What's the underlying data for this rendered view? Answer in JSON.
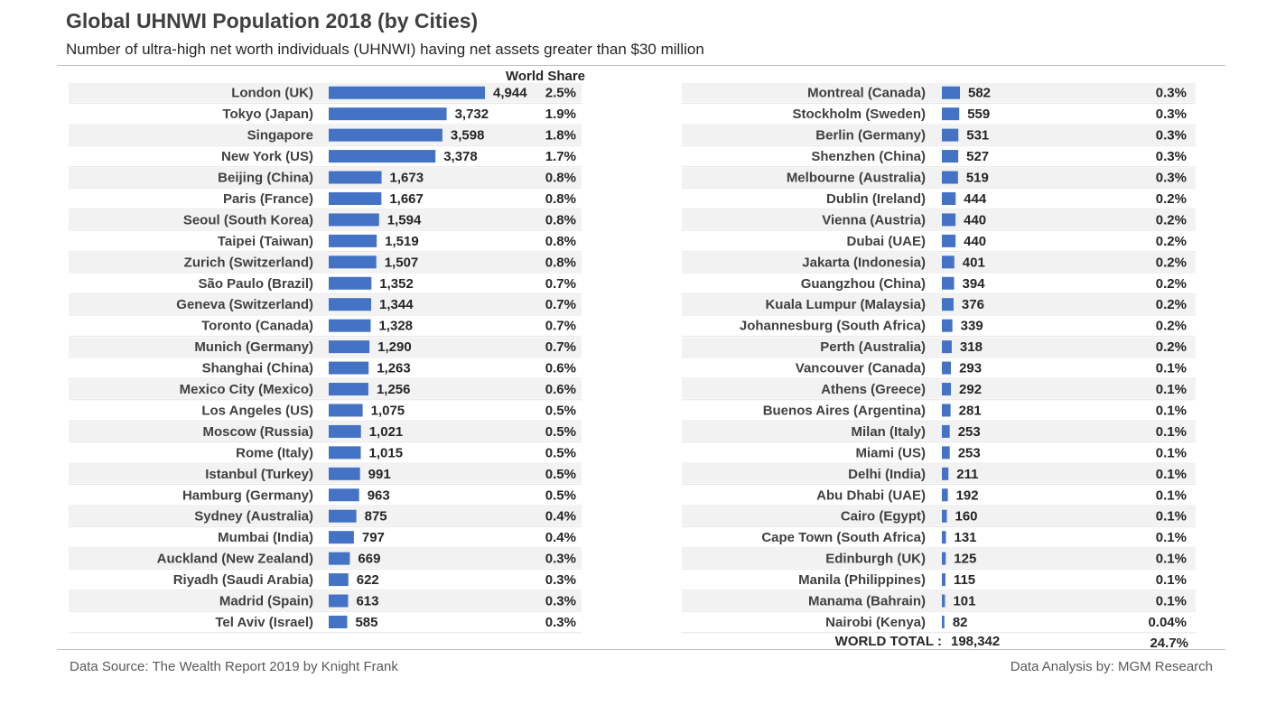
{
  "header": {
    "title": "Global UHNWI Population 2018 (by Cities)",
    "subtitle": "Number of ultra-high net worth individuals (UHNWI) having net assets greater than $30 million"
  },
  "footer": {
    "source": "Data Source: The Wealth Report 2019 by Knight Frank",
    "analysis": "Data Analysis by: MGM Research"
  },
  "colors": {
    "bar": "#4472C4",
    "stripe": "#f2f2f2"
  },
  "chart_data": {
    "type": "bar",
    "title": "Global UHNWI Population 2018 (by Cities)",
    "share_header": "World Share",
    "total_label": "WORLD TOTAL :",
    "total_value": "198,342",
    "total_share": "24.7%",
    "series": [
      {
        "name": "left",
        "categories": [
          "London (UK)",
          "Tokyo (Japan)",
          "Singapore",
          "New York (US)",
          "Beijing (China)",
          "Paris (France)",
          "Seoul (South Korea)",
          "Taipei (Taiwan)",
          "Zurich (Switzerland)",
          "São Paulo (Brazil)",
          "Geneva (Switzerland)",
          "Toronto (Canada)",
          "Munich (Germany)",
          "Shanghai (China)",
          "Mexico City (Mexico)",
          "Los Angeles (US)",
          "Moscow (Russia)",
          "Rome (Italy)",
          "Istanbul (Turkey)",
          "Hamburg (Germany)",
          "Sydney (Australia)",
          "Mumbai (India)",
          "Auckland (New Zealand)",
          "Riyadh (Saudi Arabia)",
          "Madrid (Spain)",
          "Tel Aviv (Israel)"
        ],
        "values": [
          4944,
          3732,
          3598,
          3378,
          1673,
          1667,
          1594,
          1519,
          1507,
          1352,
          1344,
          1328,
          1290,
          1263,
          1256,
          1075,
          1021,
          1015,
          991,
          963,
          875,
          797,
          669,
          622,
          613,
          585
        ],
        "value_labels": [
          "4,944",
          "3,732",
          "3,598",
          "3,378",
          "1,673",
          "1,667",
          "1,594",
          "1,519",
          "1,507",
          "1,352",
          "1,344",
          "1,328",
          "1,290",
          "1,263",
          "1,256",
          "1,075",
          "1,021",
          "1,015",
          "991",
          "963",
          "875",
          "797",
          "669",
          "622",
          "613",
          "585"
        ],
        "shares": [
          "2.5%",
          "1.9%",
          "1.8%",
          "1.7%",
          "0.8%",
          "0.8%",
          "0.8%",
          "0.8%",
          "0.8%",
          "0.7%",
          "0.7%",
          "0.7%",
          "0.7%",
          "0.6%",
          "0.6%",
          "0.5%",
          "0.5%",
          "0.5%",
          "0.5%",
          "0.5%",
          "0.4%",
          "0.4%",
          "0.3%",
          "0.3%",
          "0.3%",
          "0.3%"
        ]
      },
      {
        "name": "right",
        "categories": [
          "Montreal (Canada)",
          "Stockholm (Sweden)",
          "Berlin (Germany)",
          "Shenzhen (China)",
          "Melbourne (Australia)",
          "Dublin (Ireland)",
          "Vienna (Austria)",
          "Dubai (UAE)",
          "Jakarta (Indonesia)",
          "Guangzhou (China)",
          "Kuala Lumpur (Malaysia)",
          "Johannesburg (South Africa)",
          "Perth (Australia)",
          "Vancouver (Canada)",
          "Athens (Greece)",
          "Buenos Aires (Argentina)",
          "Milan (Italy)",
          "Miami (US)",
          "Delhi (India)",
          "Abu Dhabi (UAE)",
          "Cairo (Egypt)",
          "Cape Town (South Africa)",
          "Edinburgh (UK)",
          "Manila (Philippines)",
          "Manama (Bahrain)",
          "Nairobi (Kenya)"
        ],
        "values": [
          582,
          559,
          531,
          527,
          519,
          444,
          440,
          440,
          401,
          394,
          376,
          339,
          318,
          293,
          292,
          281,
          253,
          253,
          211,
          192,
          160,
          131,
          125,
          115,
          101,
          82
        ],
        "value_labels": [
          "582",
          "559",
          "531",
          "527",
          "519",
          "444",
          "440",
          "440",
          "401",
          "394",
          "376",
          "339",
          "318",
          "293",
          "292",
          "281",
          "253",
          "253",
          "211",
          "192",
          "160",
          "131",
          "125",
          "115",
          "101",
          "82"
        ],
        "shares": [
          "0.3%",
          "0.3%",
          "0.3%",
          "0.3%",
          "0.3%",
          "0.2%",
          "0.2%",
          "0.2%",
          "0.2%",
          "0.2%",
          "0.2%",
          "0.2%",
          "0.2%",
          "0.1%",
          "0.1%",
          "0.1%",
          "0.1%",
          "0.1%",
          "0.1%",
          "0.1%",
          "0.1%",
          "0.1%",
          "0.1%",
          "0.1%",
          "0.1%",
          "0.04%"
        ]
      }
    ]
  }
}
